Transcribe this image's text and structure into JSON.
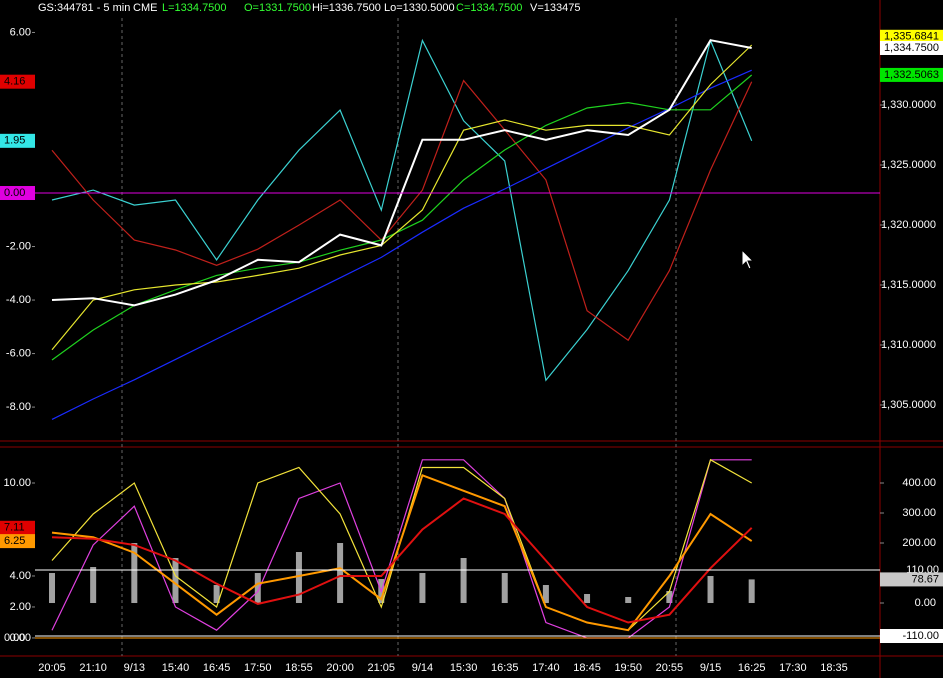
{
  "header": {
    "symbol": "GS:344781 - 5 min",
    "exchange": "CME",
    "last": "L=1334.7500",
    "open": "O=1331.7500",
    "high": "Hi=1336.7500",
    "low": "Lo=1330.5000",
    "close": "C=1334.7500",
    "volume": "V=133475"
  },
  "chart_data": [
    {
      "type": "line",
      "ylim": [
        -9.23,
        6.54
      ],
      "y2lim": [
        1302.08,
        1337.25
      ],
      "yticks": [
        {
          "value": 6,
          "label": "6.00"
        },
        {
          "value": -2,
          "label": "-2.00"
        },
        {
          "value": -4,
          "label": "-4.00"
        },
        {
          "value": -6,
          "label": "-6.00"
        },
        {
          "value": -8,
          "label": "-8.00"
        }
      ],
      "y2ticks": [
        {
          "value": 1330,
          "label": "1,330.0000"
        },
        {
          "value": 1325,
          "label": "1,325.0000"
        },
        {
          "value": 1320,
          "label": "1,320.0000"
        },
        {
          "value": 1315,
          "label": "1,315.0000"
        },
        {
          "value": 1310,
          "label": "1,310.0000"
        },
        {
          "value": 1305,
          "label": "1,305.0000"
        }
      ],
      "ymarkers": [
        {
          "value": 4.16,
          "label": "4.16",
          "color": "#e00000"
        },
        {
          "value": 1.95,
          "label": "1.95",
          "color": "#33e6e6"
        },
        {
          "value": 0,
          "label": "0.00",
          "color": "#e000e0",
          "line": true
        }
      ],
      "y2markers": [
        {
          "value": 1335.6841,
          "label": "1,335.6841",
          "color": "#ffff00"
        },
        {
          "value": 1334.75,
          "label": "1,334.7500",
          "color": "#ffffff"
        },
        {
          "value": 1332.5063,
          "label": "1,332.5063",
          "color": "#00e600"
        }
      ],
      "series": [
        {
          "color": "#3bd1d1",
          "axis": "y",
          "values": [
            -0.26,
            0.11,
            -0.45,
            -0.26,
            -2.5,
            -0.26,
            1.6,
            3.1,
            -0.64,
            5.7,
            2.7,
            1.2,
            -7.0,
            -5.1,
            -2.9,
            -0.26,
            5.7,
            1.95,
            null,
            null
          ]
        },
        {
          "color": "#c0201b",
          "axis": "y",
          "values": [
            1.6,
            -0.26,
            -1.76,
            -2.13,
            -2.7,
            -2.1,
            -1.2,
            -0.26,
            -1.76,
            0.11,
            4.2,
            2.36,
            0.49,
            -4.4,
            -5.5,
            -2.9,
            0.86,
            4.16,
            null,
            null
          ]
        },
        {
          "color": "#1a2bff",
          "axis": "y2",
          "values": [
            1303.8,
            1305.5,
            1307.1,
            1308.8,
            1310.5,
            1312.2,
            1313.9,
            1315.6,
            1317.3,
            1319.4,
            1321.4,
            1323.0,
            1324.7,
            1326.4,
            1328.1,
            1329.7,
            1331.4,
            1332.9,
            null,
            null
          ]
        },
        {
          "color": "#1fd11f",
          "axis": "y2",
          "values": [
            1308.75,
            1311.25,
            1313.3,
            1314.6,
            1315.8,
            1316.4,
            1316.9,
            1317.9,
            1318.75,
            1320.4,
            1323.75,
            1326.25,
            1328.3,
            1329.75,
            1330.2,
            1329.6,
            1329.6,
            1332.5,
            null,
            null
          ]
        },
        {
          "color": "#e6e62e",
          "axis": "y2",
          "values": [
            1309.6,
            1313.75,
            1314.6,
            1315.0,
            1315.25,
            1315.8,
            1316.4,
            1317.5,
            1318.3,
            1321.25,
            1327.9,
            1328.75,
            1327.9,
            1328.3,
            1328.3,
            1327.5,
            1331.7,
            1335.0,
            null,
            null
          ]
        },
        {
          "color": "#ffffff",
          "axis": "y2",
          "width": 2,
          "values": [
            1313.75,
            1313.9,
            1313.3,
            1314.2,
            1315.4,
            1317.1,
            1316.9,
            1319.2,
            1318.3,
            1327.1,
            1327.1,
            1327.9,
            1327.1,
            1327.9,
            1327.5,
            1329.6,
            1335.4,
            1334.75,
            null,
            null
          ]
        }
      ]
    },
    {
      "type": "line",
      "ylim": [
        -1.1,
        12.13
      ],
      "y2lim": [
        -173.3,
        510
      ],
      "categories": [
        "20:05",
        "21:10",
        "9/13",
        "15:40",
        "16:45",
        "17:50",
        "18:55",
        "20:00",
        "21:05",
        "9/14",
        "15:30",
        "16:35",
        "17:40",
        "18:45",
        "19:50",
        "20:55",
        "9/15",
        "16:25",
        "17:30",
        "18:35"
      ],
      "yticks": [
        {
          "value": 10,
          "label": "10.00"
        },
        {
          "value": 4,
          "label": "4.00"
        },
        {
          "value": 2,
          "label": "2.00"
        },
        {
          "value": 0,
          "label": "0.00"
        }
      ],
      "y2ticks": [
        {
          "value": 400,
          "label": "400.00"
        },
        {
          "value": 300,
          "label": "300.00"
        },
        {
          "value": 200,
          "label": "200.00"
        },
        {
          "value": 0,
          "label": "0.00"
        }
      ],
      "ymarkers": [
        {
          "value": 7.11,
          "label": "7.11",
          "color": "#e00000"
        },
        {
          "value": 6.25,
          "label": "6.25",
          "color": "#ff9900"
        },
        {
          "value": 0,
          "label": "0.00",
          "color": "#ff9900",
          "line": true,
          "plain": true
        }
      ],
      "y2markers": [
        {
          "value": 110,
          "label": "110.00",
          "color": "#ffffff",
          "line": true,
          "plain": true
        },
        {
          "value": 78.67,
          "label": "78.67",
          "color": "#c8c8c8"
        },
        {
          "value": -110,
          "label": "-110.00",
          "color": "#ffffff",
          "line": true
        }
      ],
      "series": [
        {
          "type": "bar",
          "color": "#bdbdbd",
          "axis": "y2",
          "values": [
            100,
            120,
            200,
            150,
            60,
            100,
            170,
            200,
            80,
            100,
            150,
            100,
            60,
            30,
            20,
            40,
            90,
            78.67,
            null,
            null
          ]
        },
        {
          "color": "#e040e0",
          "axis": "y",
          "values": [
            0.5,
            6,
            8.5,
            2,
            0.5,
            3,
            9,
            10,
            3,
            11.5,
            11.5,
            9,
            1,
            0,
            0,
            2,
            11.5,
            11.5,
            null,
            null
          ]
        },
        {
          "color": "#f2e23a",
          "axis": "y",
          "values": [
            5,
            8,
            10,
            4,
            2,
            10,
            11,
            8,
            2,
            11,
            11,
            9,
            2,
            1,
            0.5,
            3,
            11.5,
            10,
            null,
            null
          ]
        },
        {
          "color": "#ff9900",
          "axis": "y",
          "width": 2,
          "values": [
            6.8,
            6.5,
            5.5,
            3.5,
            1.5,
            3.5,
            4,
            4.5,
            2.5,
            10.5,
            9.5,
            8.5,
            2,
            1,
            0.5,
            4,
            8,
            6.25,
            null,
            null
          ]
        },
        {
          "color": "#e01010",
          "axis": "y",
          "width": 2,
          "values": [
            6.5,
            6.4,
            6,
            5,
            3.5,
            2.2,
            2.8,
            4,
            4,
            7,
            9,
            8,
            5,
            2,
            1,
            1.5,
            4.5,
            7.11,
            null,
            null
          ]
        }
      ]
    }
  ]
}
